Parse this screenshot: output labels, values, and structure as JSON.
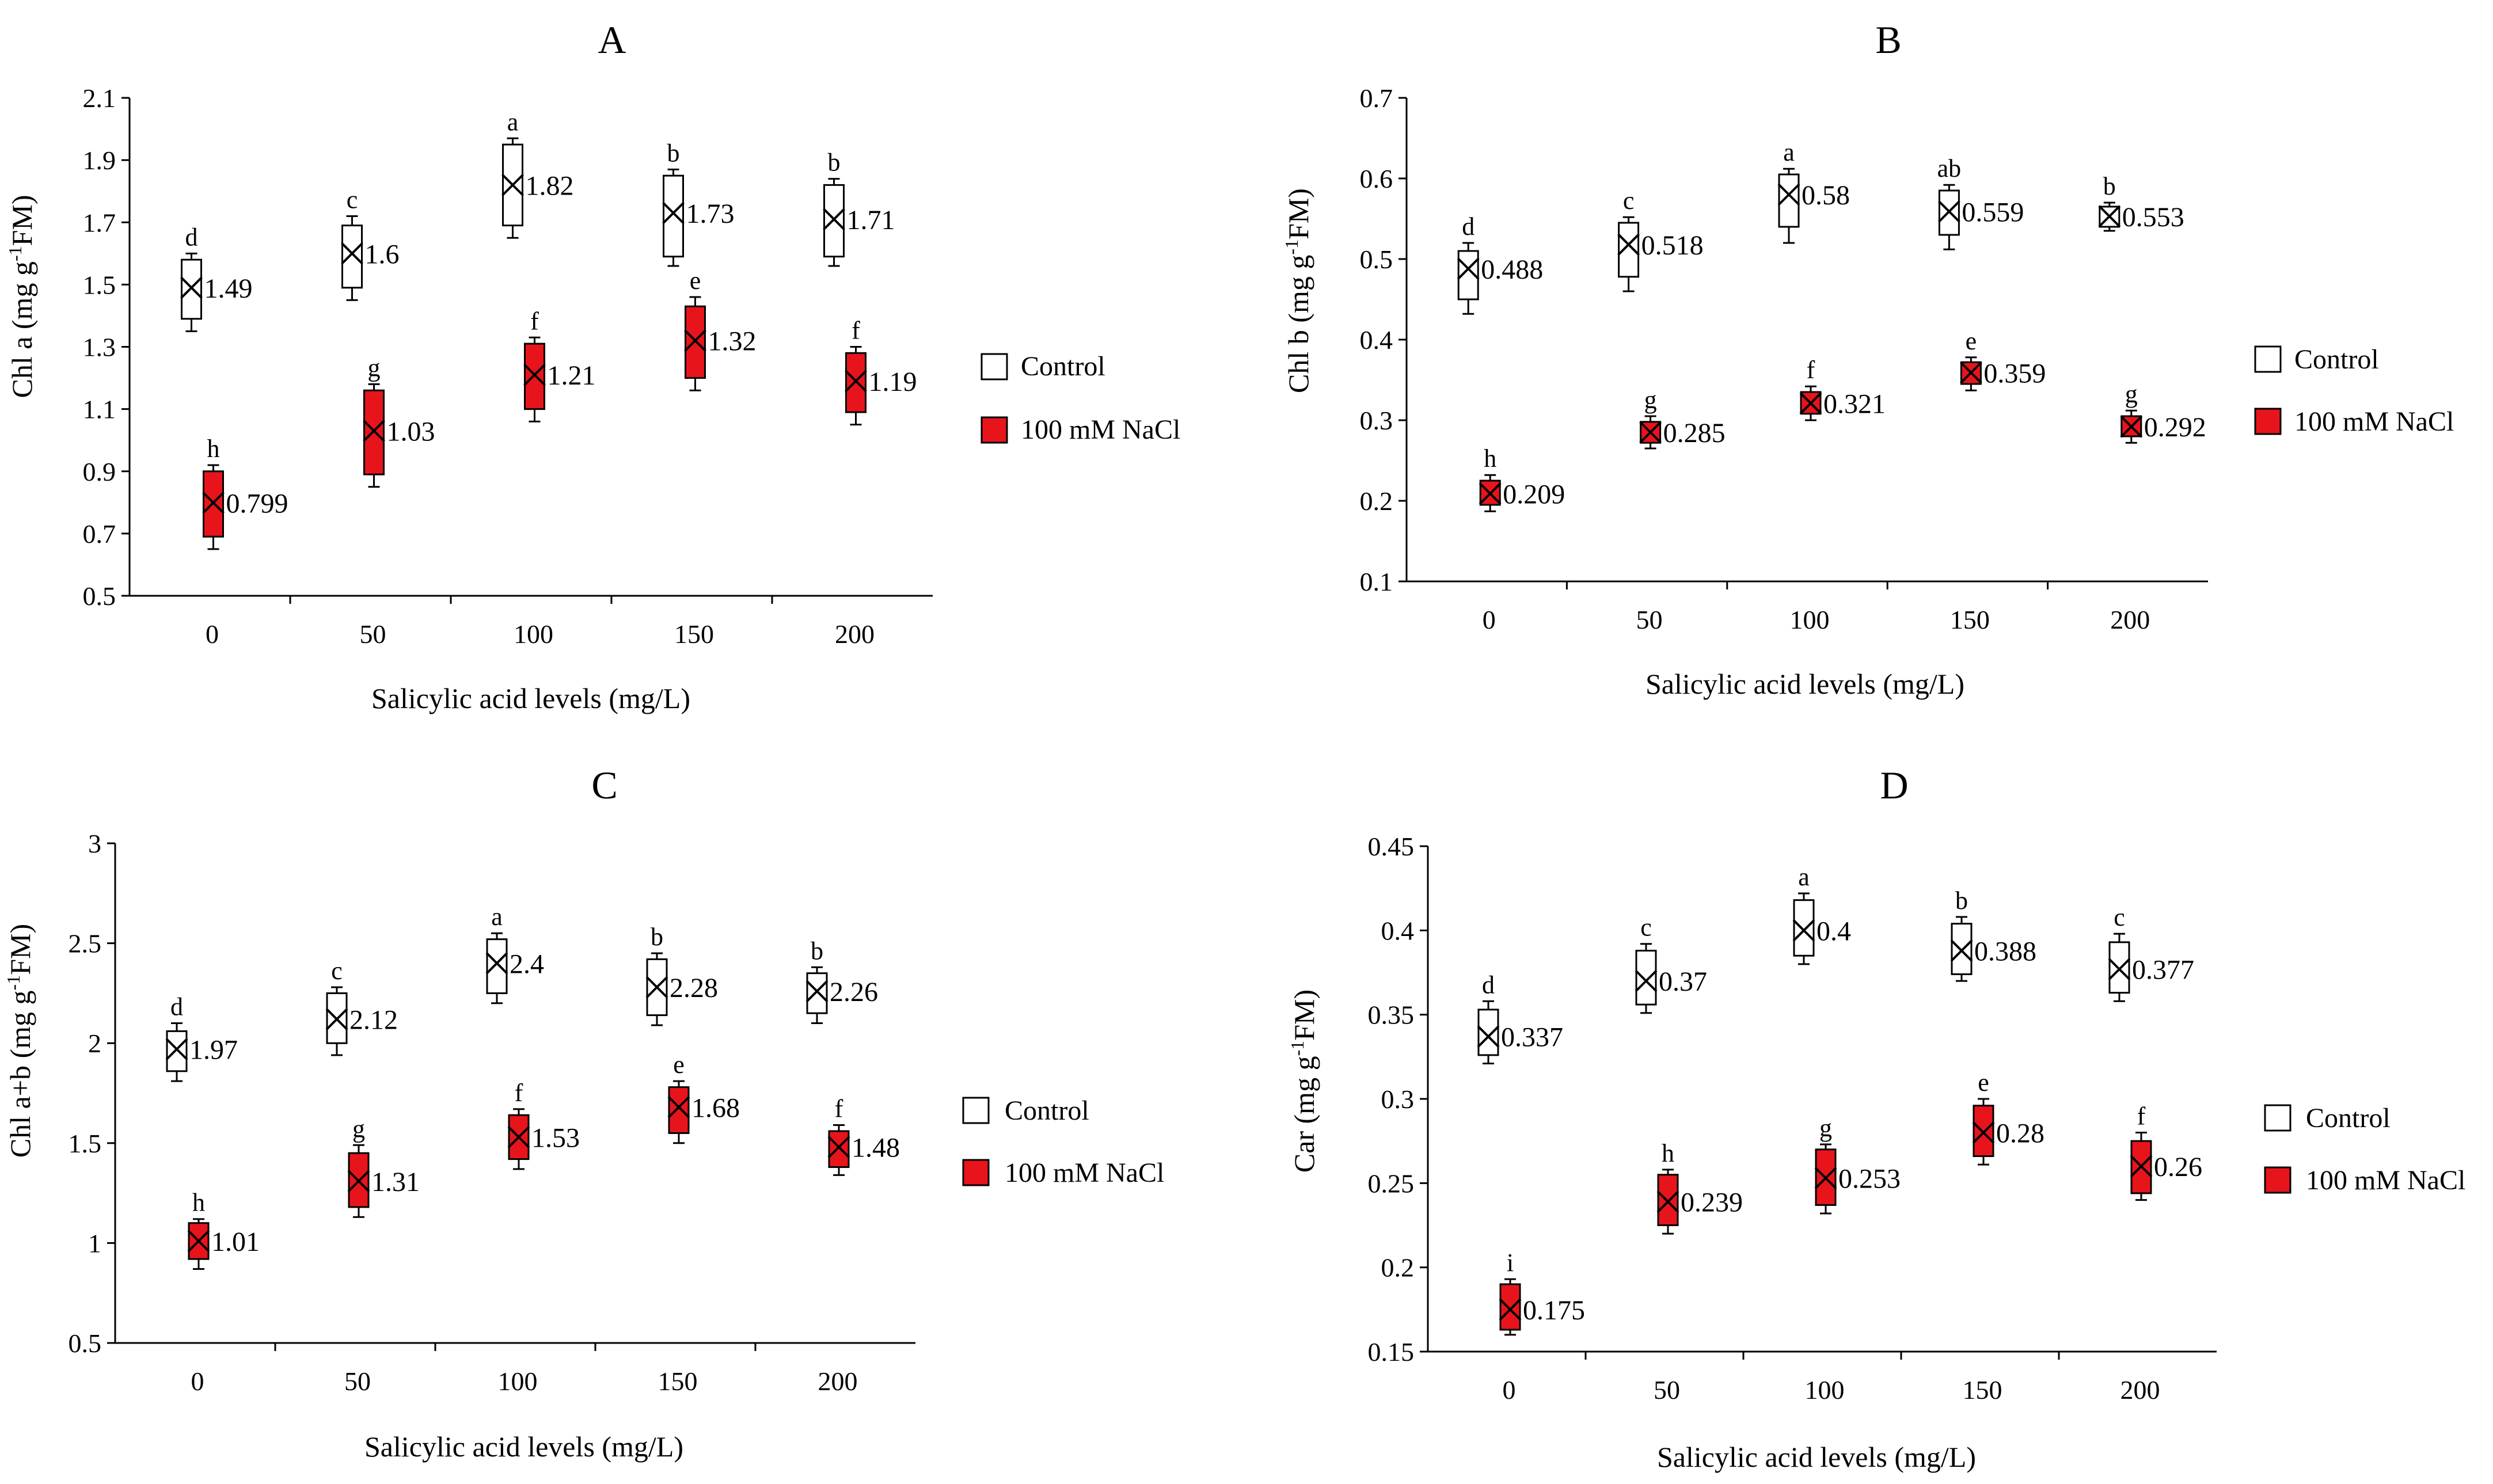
{
  "legend_labels": {
    "control": "Control",
    "nacl": "100 mM NaCl"
  },
  "colors": {
    "control": "#ffffff",
    "nacl": "#e8141c",
    "stroke": "#000000"
  },
  "chart_data": [
    {
      "id": "A",
      "type": "box",
      "title": "A",
      "xlabel": "Salicylic acid levels (mg/L)",
      "ylabel": {
        "main": "Chl a (mg g",
        "sup": "-1",
        "tail": "FM)"
      },
      "categories": [
        "0",
        "50",
        "100",
        "150",
        "200"
      ],
      "ylim": [
        0.5,
        2.1
      ],
      "yticks": [
        0.5,
        0.7,
        0.9,
        1.1,
        1.3,
        1.5,
        1.7,
        1.9,
        2.1
      ],
      "ytick_labels": [
        "0.5",
        "0.7",
        "0.9",
        "1.1",
        "1.3",
        "1.5",
        "1.7",
        "1.9",
        "2.1"
      ],
      "legend_position": "right",
      "series": [
        {
          "name": "Control",
          "means": [
            1.49,
            1.6,
            1.82,
            1.73,
            1.71
          ],
          "labels": [
            "1.49",
            "1.6",
            "1.82",
            "1.73",
            "1.71"
          ],
          "letters": [
            "d",
            "c",
            "a",
            "b",
            "b"
          ],
          "q1": [
            1.39,
            1.49,
            1.69,
            1.59,
            1.59
          ],
          "q3": [
            1.58,
            1.69,
            1.95,
            1.85,
            1.82
          ],
          "min": [
            1.35,
            1.45,
            1.65,
            1.56,
            1.56
          ],
          "max": [
            1.6,
            1.72,
            1.97,
            1.87,
            1.84
          ]
        },
        {
          "name": "100 mM NaCl",
          "means": [
            0.799,
            1.03,
            1.21,
            1.32,
            1.19
          ],
          "labels": [
            "0.799",
            "1.03",
            "1.21",
            "1.32",
            "1.19"
          ],
          "letters": [
            "h",
            "g",
            "f",
            "e",
            "f"
          ],
          "q1": [
            0.69,
            0.89,
            1.1,
            1.2,
            1.09
          ],
          "q3": [
            0.9,
            1.16,
            1.31,
            1.43,
            1.28
          ],
          "min": [
            0.65,
            0.85,
            1.06,
            1.16,
            1.05
          ],
          "max": [
            0.92,
            1.18,
            1.33,
            1.46,
            1.3
          ]
        }
      ]
    },
    {
      "id": "B",
      "type": "box",
      "title": "B",
      "xlabel": "Salicylic acid levels (mg/L)",
      "ylabel": {
        "main": "Chl b (mg g",
        "sup": "-1",
        "tail": "FM)"
      },
      "categories": [
        "0",
        "50",
        "100",
        "150",
        "200"
      ],
      "ylim": [
        0.1,
        0.7
      ],
      "yticks": [
        0.1,
        0.2,
        0.3,
        0.4,
        0.5,
        0.6,
        0.7
      ],
      "ytick_labels": [
        "0.1",
        "0.2",
        "0.3",
        "0.4",
        "0.5",
        "0.6",
        "0.7"
      ],
      "legend_position": "right",
      "series": [
        {
          "name": "Control",
          "means": [
            0.488,
            0.518,
            0.58,
            0.559,
            0.553
          ],
          "labels": [
            "0.488",
            "0.518",
            "0.58",
            "0.559",
            "0.553"
          ],
          "letters": [
            "d",
            "c",
            "a",
            "ab",
            "b"
          ],
          "q1": [
            0.45,
            0.478,
            0.54,
            0.53,
            0.54
          ],
          "q3": [
            0.51,
            0.545,
            0.605,
            0.585,
            0.565
          ],
          "min": [
            0.432,
            0.46,
            0.52,
            0.512,
            0.535
          ],
          "max": [
            0.52,
            0.552,
            0.612,
            0.592,
            0.57
          ]
        },
        {
          "name": "100 mM NaCl",
          "means": [
            0.209,
            0.285,
            0.321,
            0.359,
            0.292
          ],
          "labels": [
            "0.209",
            "0.285",
            "0.321",
            "0.359",
            "0.292"
          ],
          "letters": [
            "h",
            "g",
            "f",
            "e",
            "g"
          ],
          "q1": [
            0.195,
            0.272,
            0.308,
            0.345,
            0.28
          ],
          "q3": [
            0.225,
            0.298,
            0.335,
            0.372,
            0.305
          ],
          "min": [
            0.187,
            0.265,
            0.3,
            0.337,
            0.272
          ],
          "max": [
            0.232,
            0.305,
            0.342,
            0.378,
            0.312
          ]
        }
      ]
    },
    {
      "id": "C",
      "type": "box",
      "title": "C",
      "xlabel": "Salicylic acid levels (mg/L)",
      "ylabel": {
        "main": "Chl a+b (mg g",
        "sup": "-1",
        "tail": "FM)"
      },
      "categories": [
        "0",
        "50",
        "100",
        "150",
        "200"
      ],
      "ylim": [
        0.5,
        3
      ],
      "yticks": [
        0.5,
        1,
        1.5,
        2,
        2.5,
        3
      ],
      "ytick_labels": [
        "0.5",
        "1",
        "1.5",
        "2",
        "2.5",
        "3"
      ],
      "legend_position": "right",
      "series": [
        {
          "name": "Control",
          "means": [
            1.97,
            2.12,
            2.4,
            2.28,
            2.26
          ],
          "labels": [
            "1.97",
            "2.12",
            "2.4",
            "2.28",
            "2.26"
          ],
          "letters": [
            "d",
            "c",
            "a",
            "b",
            "b"
          ],
          "q1": [
            1.86,
            2.0,
            2.25,
            2.14,
            2.15
          ],
          "q3": [
            2.06,
            2.25,
            2.52,
            2.42,
            2.35
          ],
          "min": [
            1.81,
            1.94,
            2.2,
            2.09,
            2.1
          ],
          "max": [
            2.1,
            2.28,
            2.55,
            2.45,
            2.38
          ]
        },
        {
          "name": "100 mM NaCl",
          "means": [
            1.01,
            1.31,
            1.53,
            1.68,
            1.48
          ],
          "labels": [
            "1.01",
            "1.31",
            "1.53",
            "1.68",
            "1.48"
          ],
          "letters": [
            "h",
            "g",
            "f",
            "e",
            "f"
          ],
          "q1": [
            0.92,
            1.18,
            1.42,
            1.55,
            1.38
          ],
          "q3": [
            1.1,
            1.45,
            1.64,
            1.78,
            1.56
          ],
          "min": [
            0.87,
            1.13,
            1.37,
            1.5,
            1.34
          ],
          "max": [
            1.12,
            1.49,
            1.67,
            1.81,
            1.59
          ]
        }
      ]
    },
    {
      "id": "D",
      "type": "box",
      "title": "D",
      "xlabel": "Salicylic acid levels (mg/L)",
      "ylabel": {
        "main": "Car (mg g",
        "sup": "-1",
        "tail": "FM)"
      },
      "categories": [
        "0",
        "50",
        "100",
        "150",
        "200"
      ],
      "ylim": [
        0.15,
        0.45
      ],
      "yticks": [
        0.15,
        0.2,
        0.25,
        0.3,
        0.35,
        0.4,
        0.45
      ],
      "ytick_labels": [
        "0.15",
        "0.2",
        "0.25",
        "0.3",
        "0.35",
        "0.4",
        "0.45"
      ],
      "legend_position": "right",
      "series": [
        {
          "name": "Control",
          "means": [
            0.337,
            0.37,
            0.4,
            0.388,
            0.377
          ],
          "labels": [
            "0.337",
            "0.37",
            "0.4",
            "0.388",
            "0.377"
          ],
          "letters": [
            "d",
            "c",
            "a",
            "b",
            "c"
          ],
          "q1": [
            0.326,
            0.356,
            0.385,
            0.374,
            0.363
          ],
          "q3": [
            0.353,
            0.388,
            0.418,
            0.404,
            0.393
          ],
          "min": [
            0.321,
            0.351,
            0.38,
            0.37,
            0.358
          ],
          "max": [
            0.358,
            0.392,
            0.422,
            0.408,
            0.398
          ]
        },
        {
          "name": "100 mM NaCl",
          "means": [
            0.175,
            0.239,
            0.253,
            0.28,
            0.26
          ],
          "labels": [
            "0.175",
            "0.239",
            "0.253",
            "0.28",
            "0.26"
          ],
          "letters": [
            "i",
            "h",
            "g",
            "e",
            "f"
          ],
          "q1": [
            0.163,
            0.225,
            0.237,
            0.266,
            0.244
          ],
          "q3": [
            0.19,
            0.255,
            0.27,
            0.296,
            0.275
          ],
          "min": [
            0.16,
            0.22,
            0.232,
            0.261,
            0.24
          ],
          "max": [
            0.193,
            0.258,
            0.273,
            0.3,
            0.28
          ]
        }
      ]
    }
  ]
}
